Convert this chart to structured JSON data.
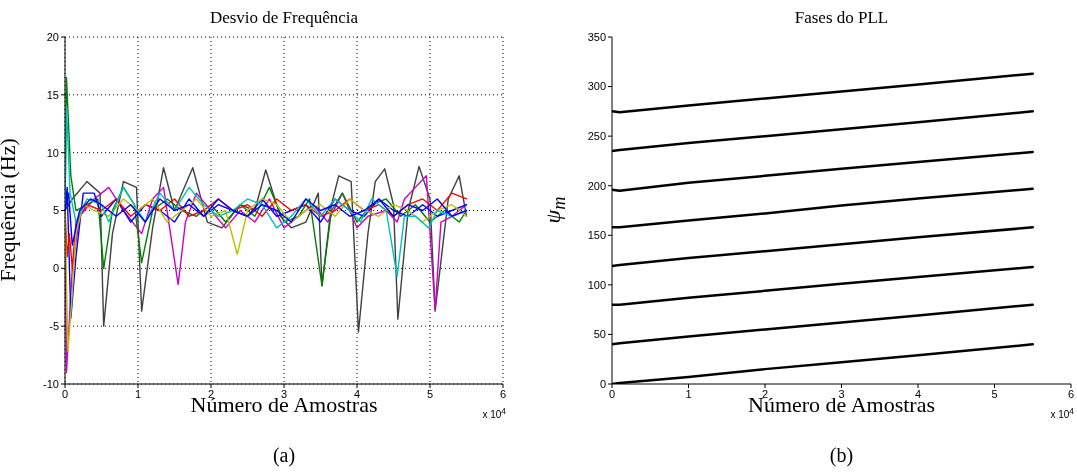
{
  "chart_data": [
    {
      "type": "line",
      "title": "Desvio de Frequência",
      "xlabel": "Número de Amostras",
      "ylabel": "Frequência (Hz)",
      "annotations": [
        "x 10$^{4}$",
        "(a)"
      ],
      "xlim": [
        0,
        6
      ],
      "xticks": [
        0,
        1,
        2,
        3,
        4,
        5,
        6
      ],
      "ylim": [
        -10,
        20
      ],
      "yticks": [
        -10,
        -5,
        0,
        5,
        10,
        15,
        20
      ],
      "grid": true,
      "series": [
        {
          "color": "#404040",
          "x": [
            0,
            0.1,
            0.3,
            0.48,
            0.53,
            0.65,
            0.8,
            0.98,
            1.05,
            1.2,
            1.35,
            1.5,
            1.75,
            1.95,
            2.15,
            2.4,
            2.6,
            2.75,
            2.95,
            3.1,
            3.3,
            3.47,
            3.52,
            3.65,
            3.75,
            3.92,
            4.02,
            4.15,
            4.25,
            4.38,
            4.5,
            4.56,
            4.7,
            4.85,
            5,
            5.07,
            5.25,
            5.4,
            5.5
          ],
          "values": [
            5,
            6,
            7.5,
            6.5,
            -5,
            3,
            7.5,
            7,
            -3.7,
            3.5,
            8.7,
            5,
            8.7,
            4,
            3.5,
            5.5,
            5,
            8.5,
            4.5,
            3.5,
            4,
            6.5,
            -1.5,
            5.5,
            8,
            7.5,
            -5.5,
            3,
            7.5,
            8.6,
            5.5,
            -4.4,
            5,
            8.8,
            6,
            -3.7,
            6,
            8,
            4.5
          ]
        },
        {
          "color": "#cc00cc",
          "x": [
            0,
            0.02,
            0.1,
            0.2,
            0.4,
            0.6,
            0.8,
            1.05,
            1.2,
            1.35,
            1.55,
            1.65,
            1.8,
            2,
            2.2,
            2.4,
            2.6,
            2.8,
            3,
            3.2,
            3.4,
            3.6,
            3.8,
            4,
            4.15,
            4.4,
            4.55,
            4.65,
            4.8,
            4.95,
            5.07,
            5.15,
            5.3,
            5.5
          ],
          "values": [
            5,
            -9,
            0,
            4.5,
            6,
            7,
            5,
            3,
            6,
            7,
            -1.4,
            4,
            6.5,
            5,
            3.5,
            5,
            4,
            6,
            3.5,
            4.5,
            5.5,
            4,
            6.5,
            3.5,
            4.5,
            5,
            4,
            6,
            7,
            8,
            -3.6,
            4,
            4.5,
            5.5
          ]
        },
        {
          "color": "#008000",
          "x": [
            0,
            0.02,
            0.08,
            0.15,
            0.3,
            0.45,
            0.53,
            0.65,
            0.8,
            0.95,
            1.05,
            1.2,
            1.4,
            1.6,
            1.8,
            2,
            2.2,
            2.4,
            2.6,
            2.8,
            3,
            3.2,
            3.35,
            3.52,
            3.65,
            3.8,
            4,
            4.2,
            4.4,
            4.6,
            4.8,
            5,
            5.2,
            5.4,
            5.5
          ],
          "values": [
            5,
            16.5,
            8,
            5,
            5.5,
            6,
            0,
            5,
            7,
            5.5,
            0.5,
            5,
            6,
            5,
            4.5,
            5.5,
            4,
            5.5,
            4.5,
            7,
            4,
            4.5,
            6,
            -1.5,
            5,
            6.5,
            4,
            5.5,
            6,
            4.5,
            5.5,
            4,
            5,
            4,
            5
          ]
        },
        {
          "color": "#0000ff",
          "x": [
            0,
            0.03,
            0.08,
            0.15,
            0.25,
            0.4,
            0.5,
            0.7,
            0.9,
            1.1,
            1.3,
            1.5,
            1.7,
            1.9,
            2.1,
            2.3,
            2.5,
            2.7,
            2.9,
            3.1,
            3.3,
            3.5,
            3.7,
            3.9,
            4.1,
            4.3,
            4.5,
            4.7,
            4.9,
            5.1,
            5.3,
            5.5
          ],
          "values": [
            5,
            7,
            -4.3,
            1,
            6.5,
            6.5,
            4.5,
            6,
            4,
            5.5,
            5,
            4,
            6,
            4.5,
            5.5,
            5,
            4.5,
            6,
            4.5,
            5,
            5.5,
            4,
            6,
            5,
            4.5,
            6,
            5,
            4.5,
            5.5,
            4.5,
            5,
            5.5
          ]
        },
        {
          "color": "#ff0000",
          "x": [
            0,
            0.03,
            0.06,
            0.1,
            0.15,
            0.3,
            0.5,
            0.7,
            0.9,
            1.1,
            1.3,
            1.5,
            1.7,
            1.9,
            2.1,
            2.3,
            2.5,
            2.7,
            2.9,
            3.1,
            3.3,
            3.5,
            3.7,
            3.9,
            4.1,
            4.3,
            4.5,
            4.7,
            4.9,
            5.1,
            5.3,
            5.5
          ],
          "values": [
            5,
            1,
            3,
            0,
            4,
            5.5,
            5,
            6,
            4.5,
            5.5,
            5,
            6,
            4.5,
            5,
            6,
            5,
            5.5,
            4.5,
            6,
            5,
            5.5,
            4.5,
            5,
            6,
            5,
            5.5,
            4.5,
            5.5,
            6,
            5,
            6.5,
            6
          ]
        },
        {
          "color": "#bfbf00",
          "x": [
            0,
            0.04,
            0.09,
            0.15,
            0.25,
            0.4,
            0.6,
            0.8,
            1,
            1.2,
            1.4,
            1.6,
            1.8,
            2,
            2.2,
            2.36,
            2.5,
            2.7,
            2.9,
            3.1,
            3.3,
            3.5,
            3.7,
            3.9,
            4.1,
            4.3,
            4.5,
            4.7,
            4.9,
            5.1,
            5.3,
            5.5
          ],
          "values": [
            5,
            -7.2,
            -3,
            3,
            5.5,
            5,
            4.5,
            6,
            5,
            6,
            4,
            5,
            6,
            4.5,
            5,
            1.2,
            5,
            6,
            5.5,
            4,
            5,
            5.5,
            4.5,
            6,
            5,
            4.5,
            5.5,
            5,
            4,
            5,
            5.5,
            4.5
          ]
        },
        {
          "color": "#00bfbf",
          "x": [
            0,
            0.02,
            0.07,
            0.15,
            0.3,
            0.5,
            0.6,
            0.8,
            1,
            1.1,
            1.3,
            1.5,
            1.7,
            1.9,
            2.1,
            2.3,
            2.5,
            2.7,
            2.9,
            3.1,
            3.3,
            3.5,
            3.7,
            3.9,
            4.05,
            4.2,
            4.4,
            4.55,
            4.65,
            4.8,
            4.98,
            5.1,
            5.3,
            5.5
          ],
          "values": [
            5,
            14,
            6.5,
            4,
            6,
            5.5,
            4,
            7,
            5,
            4,
            6.5,
            5,
            7,
            5.5,
            4.5,
            5,
            6,
            5.5,
            3.5,
            4.5,
            6,
            4.5,
            6,
            5,
            4,
            6,
            5,
            -0.7,
            4.5,
            4.5,
            3.5,
            5,
            4.5,
            5
          ]
        },
        {
          "color": "#0000ff",
          "x": [
            0,
            0.05,
            0.1,
            0.2,
            0.35,
            0.5,
            0.7,
            0.9,
            1.1,
            1.3,
            1.5,
            1.7,
            1.9,
            2.1,
            2.3,
            2.5,
            2.7,
            2.9,
            3.1,
            3.3,
            3.5,
            3.7,
            3.9,
            4.1,
            4.3,
            4.5,
            4.7,
            4.9,
            5.1,
            5.3,
            5.5
          ],
          "values": [
            5,
            6.5,
            2,
            5,
            6,
            5.5,
            4.5,
            5.5,
            4,
            6,
            5,
            5.5,
            4.5,
            6,
            5,
            4.5,
            5.5,
            5,
            4,
            6,
            5,
            5.5,
            4.5,
            5,
            6,
            4.5,
            5.5,
            5,
            6,
            4.5,
            5
          ]
        }
      ]
    },
    {
      "type": "line",
      "title": "Fases do PLL",
      "xlabel": "Número de Amostras",
      "ylabel": "ψ$_{m}$",
      "annotations": [
        "x 10$^{4}$",
        "(b)"
      ],
      "xlim": [
        0,
        6
      ],
      "xticks": [
        0,
        1,
        2,
        3,
        4,
        5,
        6
      ],
      "ylim": [
        0,
        350
      ],
      "yticks": [
        0,
        50,
        100,
        150,
        200,
        250,
        300,
        350
      ],
      "series": [
        {
          "color": "#000000",
          "x": [
            0,
            0.1,
            1,
            2,
            3,
            4,
            5.5
          ],
          "values": [
            0,
            1,
            7,
            15,
            22,
            29,
            40
          ]
        },
        {
          "color": "#000000",
          "x": [
            0,
            0.1,
            1,
            2,
            3,
            4,
            5.5
          ],
          "values": [
            40,
            41,
            48,
            55,
            62,
            69,
            80
          ]
        },
        {
          "color": "#000000",
          "x": [
            0,
            0.1,
            1,
            2,
            3,
            4,
            5.5
          ],
          "values": [
            80,
            80,
            87,
            94,
            101,
            108,
            118
          ]
        },
        {
          "color": "#000000",
          "x": [
            0,
            0.1,
            1,
            2,
            3,
            4,
            5.5
          ],
          "values": [
            119,
            120,
            127,
            134,
            141,
            148,
            158
          ]
        },
        {
          "color": "#000000",
          "x": [
            0,
            0.1,
            1,
            2,
            3,
            4,
            5.5
          ],
          "values": [
            158,
            158,
            165,
            172,
            180,
            187,
            197
          ]
        },
        {
          "color": "#000000",
          "x": [
            0,
            0.1,
            1,
            2,
            3,
            4,
            5.5
          ],
          "values": [
            196,
            195,
            203,
            210,
            217,
            224,
            234
          ]
        },
        {
          "color": "#000000",
          "x": [
            0,
            0.1,
            1,
            2,
            3,
            4,
            5.5
          ],
          "values": [
            235,
            236,
            243,
            250,
            257,
            264,
            275
          ]
        },
        {
          "color": "#000000",
          "x": [
            0,
            0.1,
            1,
            2,
            3,
            4,
            5.5
          ],
          "values": [
            275,
            274,
            281,
            288,
            295,
            302,
            313
          ]
        }
      ]
    }
  ]
}
